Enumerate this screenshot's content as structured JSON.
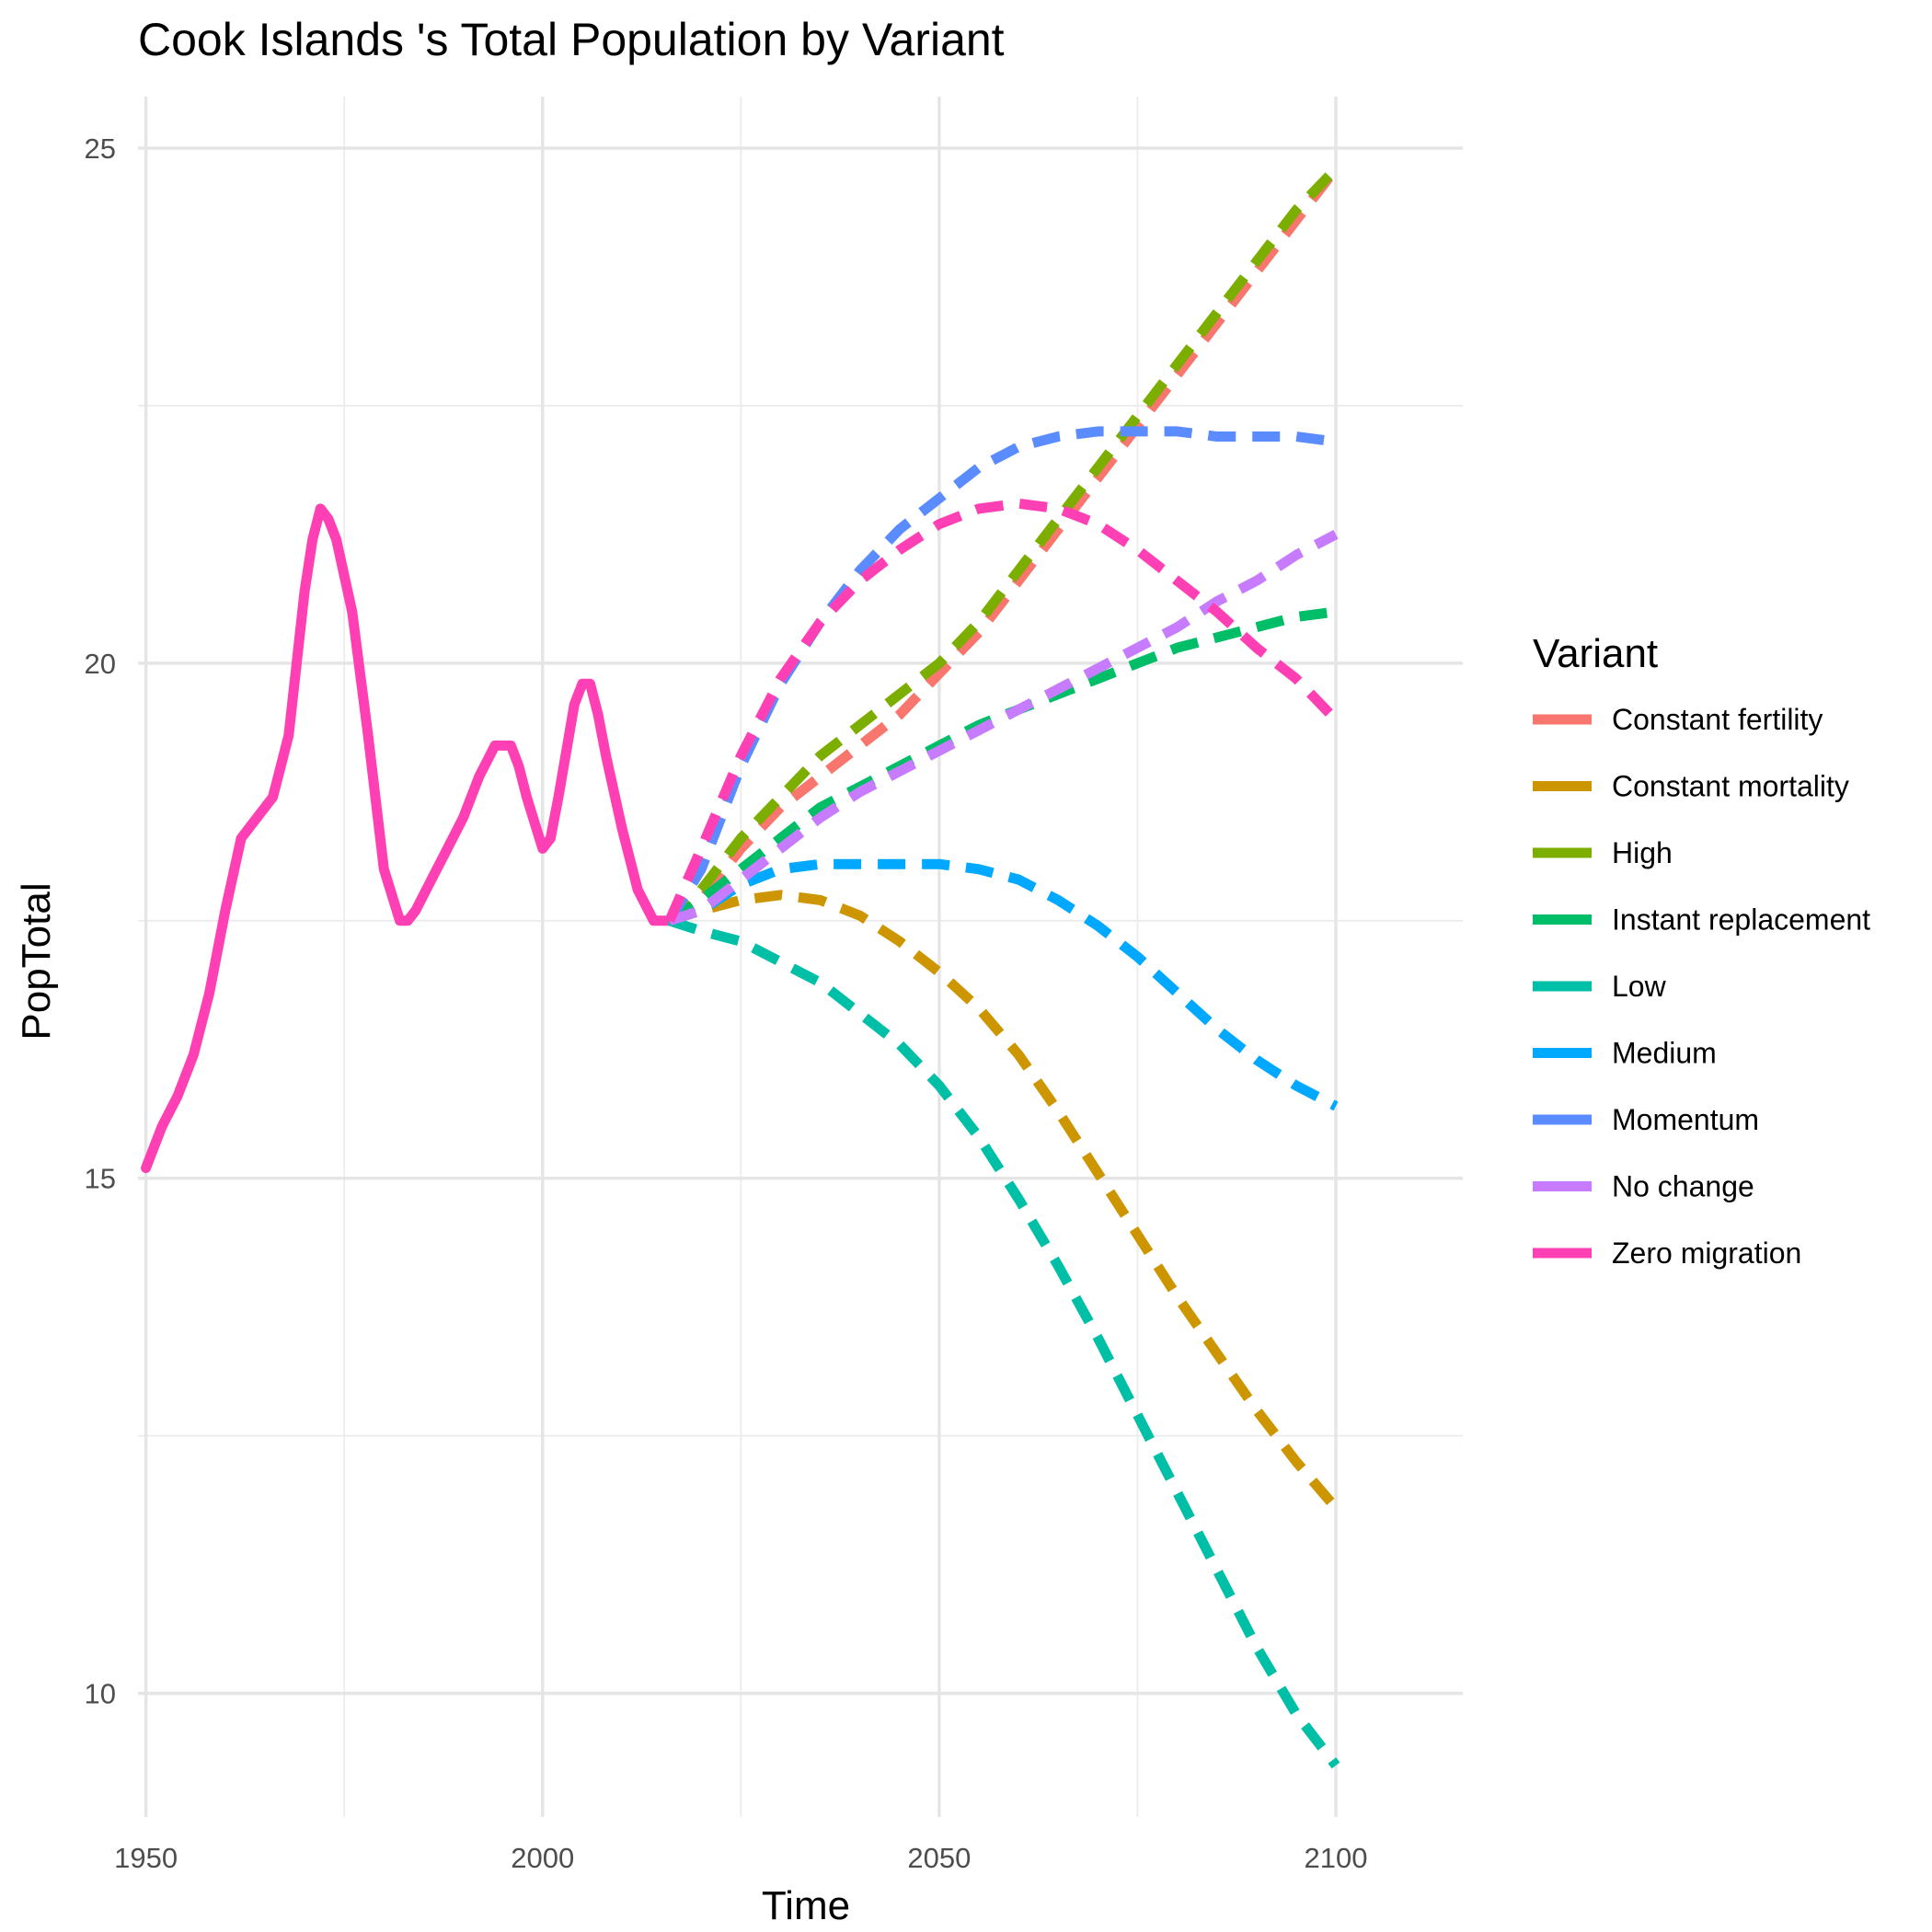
{
  "chart_data": {
    "type": "line",
    "title": "Cook Islands 's Total Population by Variant",
    "xlabel": "Time",
    "ylabel": "PopTotal",
    "xlim": [
      1949,
      2116
    ],
    "ylim": [
      8.8,
      25.5
    ],
    "x_ticks": [
      1950,
      2000,
      2050,
      2100
    ],
    "y_ticks": [
      10,
      15,
      20,
      25
    ],
    "grid": true,
    "legend": {
      "title": "Variant",
      "position": "right"
    },
    "historical": {
      "name": "Zero migration",
      "color": "#FF3FB4",
      "x": [
        1950,
        1952,
        1954,
        1956,
        1958,
        1960,
        1962,
        1964,
        1966,
        1968,
        1970,
        1971,
        1972,
        1973,
        1974,
        1976,
        1978,
        1980,
        1982,
        1983,
        1984,
        1986,
        1988,
        1990,
        1992,
        1994,
        1996,
        1997,
        1998,
        2000,
        2001,
        2002,
        2004,
        2005,
        2006,
        2007,
        2008,
        2010,
        2012,
        2014,
        2015,
        2016
      ],
      "y": [
        15.1,
        15.5,
        15.8,
        16.2,
        16.8,
        17.6,
        18.3,
        18.5,
        18.7,
        19.3,
        20.7,
        21.2,
        21.5,
        21.4,
        21.2,
        20.5,
        19.3,
        18.0,
        17.5,
        17.5,
        17.6,
        17.9,
        18.2,
        18.5,
        18.9,
        19.2,
        19.2,
        19.0,
        18.7,
        18.2,
        18.3,
        18.7,
        19.6,
        19.8,
        19.8,
        19.5,
        19.1,
        18.4,
        17.8,
        17.5,
        17.5,
        17.5
      ]
    },
    "projection_x": [
      2016,
      2020,
      2025,
      2030,
      2035,
      2040,
      2045,
      2050,
      2055,
      2060,
      2065,
      2070,
      2075,
      2080,
      2085,
      2090,
      2095,
      2100
    ],
    "series": [
      {
        "name": "Constant fertility",
        "color": "#F8766D",
        "values": [
          17.5,
          17.7,
          18.2,
          18.6,
          18.9,
          19.2,
          19.5,
          19.9,
          20.3,
          20.8,
          21.3,
          21.8,
          22.3,
          22.8,
          23.3,
          23.8,
          24.3,
          24.8
        ]
      },
      {
        "name": "Constant mortality",
        "color": "#CD9600",
        "values": [
          17.5,
          17.6,
          17.7,
          17.75,
          17.7,
          17.55,
          17.3,
          17.0,
          16.65,
          16.2,
          15.65,
          15.05,
          14.45,
          13.85,
          13.3,
          12.75,
          12.25,
          11.8
        ]
      },
      {
        "name": "High",
        "color": "#7CAE00",
        "values": [
          17.5,
          17.8,
          18.3,
          18.7,
          19.1,
          19.4,
          19.7,
          20.0,
          20.4,
          20.9,
          21.4,
          21.9,
          22.4,
          22.9,
          23.4,
          23.9,
          24.4,
          24.8
        ]
      },
      {
        "name": "Instant replacement",
        "color": "#00BE67",
        "values": [
          17.5,
          17.7,
          18.0,
          18.3,
          18.6,
          18.8,
          19.0,
          19.2,
          19.4,
          19.55,
          19.7,
          19.85,
          20.0,
          20.15,
          20.25,
          20.35,
          20.45,
          20.5
        ]
      },
      {
        "name": "Low",
        "color": "#00BFA7",
        "values": [
          17.5,
          17.4,
          17.3,
          17.1,
          16.9,
          16.6,
          16.3,
          15.9,
          15.4,
          14.8,
          14.15,
          13.45,
          12.7,
          11.95,
          11.2,
          10.45,
          9.8,
          9.3
        ]
      },
      {
        "name": "Medium",
        "color": "#00A9FF",
        "values": [
          17.5,
          17.6,
          17.85,
          18.0,
          18.05,
          18.05,
          18.05,
          18.05,
          18.0,
          17.9,
          17.7,
          17.45,
          17.15,
          16.8,
          16.45,
          16.15,
          15.9,
          15.7
        ]
      },
      {
        "name": "Momentum",
        "color": "#5B8CFF",
        "values": [
          17.5,
          18.0,
          19.0,
          19.8,
          20.4,
          20.9,
          21.3,
          21.6,
          21.9,
          22.1,
          22.2,
          22.25,
          22.25,
          22.25,
          22.2,
          22.2,
          22.2,
          22.15
        ]
      },
      {
        "name": "No change",
        "color": "#C77CFF",
        "values": [
          17.5,
          17.6,
          17.9,
          18.2,
          18.5,
          18.75,
          18.95,
          19.15,
          19.35,
          19.55,
          19.75,
          19.95,
          20.15,
          20.35,
          20.6,
          20.8,
          21.05,
          21.25
        ]
      },
      {
        "name": "Zero migration",
        "color": "#FF3FB4",
        "values": [
          17.5,
          18.2,
          19.1,
          19.85,
          20.4,
          20.8,
          21.1,
          21.35,
          21.5,
          21.55,
          21.5,
          21.35,
          21.1,
          20.8,
          20.5,
          20.15,
          19.85,
          19.45
        ]
      }
    ]
  }
}
